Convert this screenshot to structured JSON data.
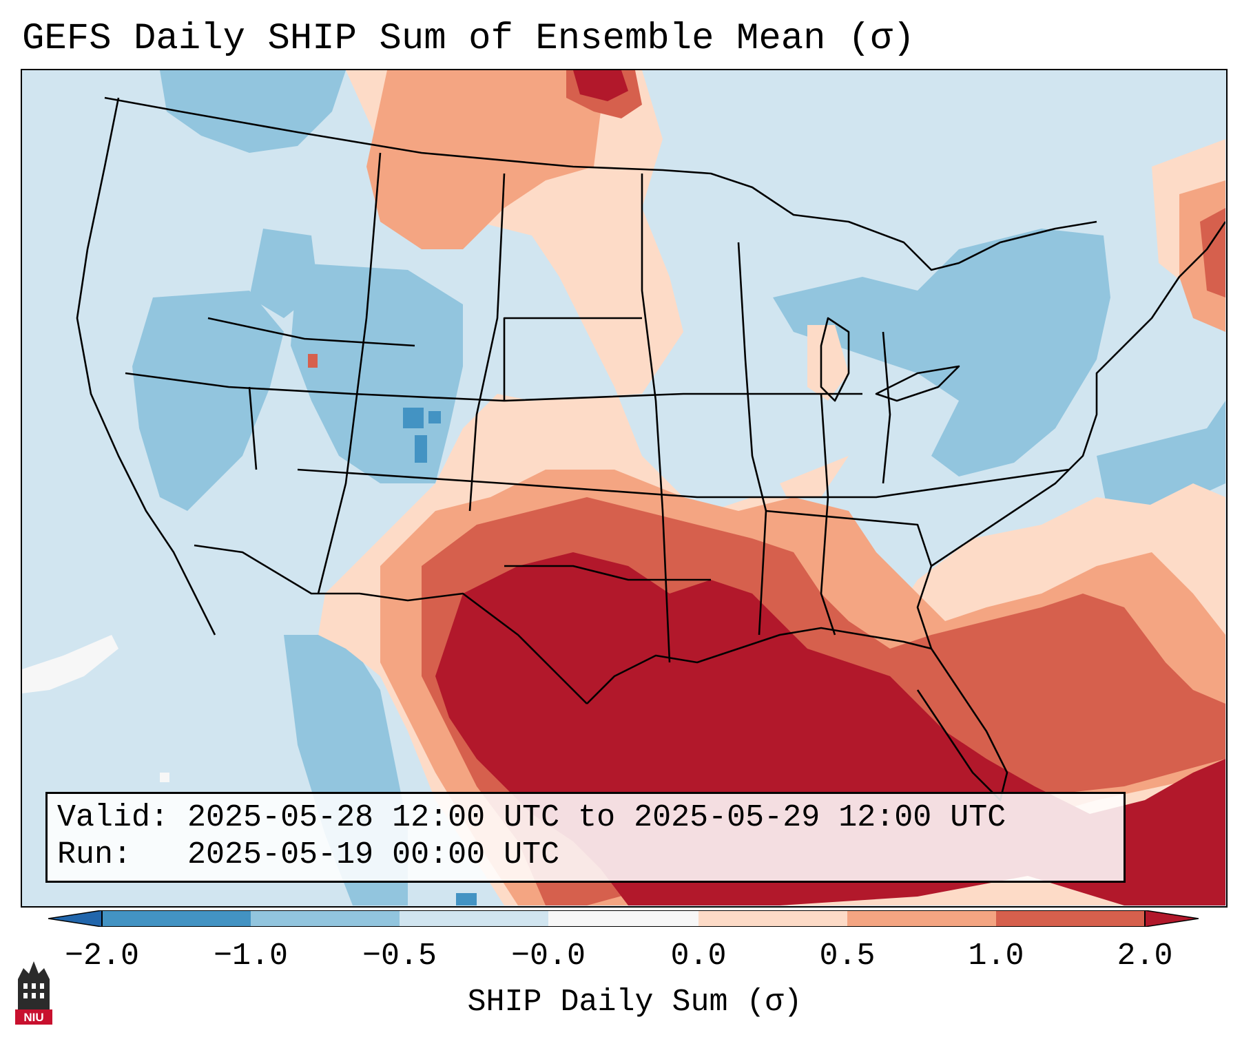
{
  "title": "GEFS Daily SHIP Sum of Ensemble Mean (σ)",
  "info": {
    "valid_label": "Valid:",
    "valid_value": "2025-05-28 12:00 UTC to 2025-05-29 12:00 UTC",
    "run_label": "Run:",
    "run_value": "2025-05-19 00:00 UTC"
  },
  "colorbar": {
    "label": "SHIP Daily Sum (σ)",
    "ticks": [
      "−2.0",
      "−1.0",
      "−0.5",
      "−0.0",
      "0.0",
      "0.5",
      "1.0",
      "2.0"
    ],
    "colors": [
      "#4393c3",
      "#92c5de",
      "#d1e5f0",
      "#fddbc7",
      "#f4a582",
      "#d6604d",
      "#b2182b"
    ],
    "extend": "both"
  },
  "legend_colors": {
    "strong_negative": "#4393c3",
    "negative": "#92c5de",
    "near_zero_negative": "#d1e5f0",
    "near_zero_positive": "#fddbc7",
    "positive": "#f4a582",
    "strong_positive": "#d6604d",
    "extreme_positive": "#b2182b"
  },
  "logo": {
    "text": "NIU"
  }
}
